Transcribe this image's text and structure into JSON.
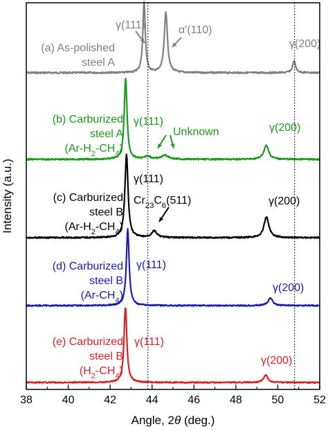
{
  "chart_data": {
    "type": "line",
    "xlabel_prefix": "Angle, 2",
    "xlabel_theta": "θ",
    "xlabel_suffix": " (deg.)",
    "ylabel": "Intensity (a.u.)",
    "xlim": [
      38,
      52
    ],
    "xticks": [
      38,
      40,
      42,
      44,
      46,
      48,
      50,
      52
    ],
    "xtick_labels": [
      "38",
      "40",
      "42",
      "44",
      "46",
      "48",
      "50",
      "52"
    ],
    "reference_lines": [
      43.8,
      50.8
    ],
    "series": [
      {
        "id": "a",
        "color": "#808080",
        "label_lines": [
          "(a) As-polished",
          "steel A"
        ],
        "baseline": 0,
        "peaks": [
          {
            "center": 43.62,
            "height": 100,
            "width": 0.07
          },
          {
            "center": 44.66,
            "height": 86,
            "width": 0.09
          },
          {
            "center": 50.78,
            "height": 16,
            "width": 0.09
          }
        ],
        "peak_labels": [
          {
            "text": "γ(111)",
            "at": 43.62
          },
          {
            "text": "α'(110)",
            "at": 44.66
          },
          {
            "text": "γ(200)",
            "at": 50.78
          }
        ]
      },
      {
        "id": "b",
        "color": "#1a9a1a",
        "label_lines": [
          "(b) Carburized",
          "steel A",
          "(Ar-H2-CH4)"
        ],
        "baseline": 0,
        "peaks": [
          {
            "center": 42.74,
            "height": 100,
            "width": 0.08
          },
          {
            "center": 43.8,
            "height": 4,
            "width": 0.15
          },
          {
            "center": 44.62,
            "height": 5,
            "width": 0.2
          },
          {
            "center": 49.45,
            "height": 17,
            "width": 0.14
          }
        ],
        "peak_labels": [
          {
            "text": "γ(111)",
            "at": 42.74
          },
          {
            "text": "Unknown",
            "at": 44.25
          },
          {
            "text": "γ(200)",
            "at": 49.45
          }
        ]
      },
      {
        "id": "c",
        "color": "#000000",
        "label_lines": [
          "(c) Carburized",
          "steel B",
          "(Ar-H2-CH4)"
        ],
        "baseline": 0,
        "peaks": [
          {
            "center": 42.78,
            "height": 100,
            "width": 0.09
          },
          {
            "center": 44.1,
            "height": 8,
            "width": 0.15
          },
          {
            "center": 49.46,
            "height": 25,
            "width": 0.14
          }
        ],
        "peak_labels": [
          {
            "text": "γ(111)",
            "at": 42.78
          },
          {
            "text": "Cr23C6(511)",
            "at": 44.1
          },
          {
            "text": "γ(200)",
            "at": 49.46
          }
        ]
      },
      {
        "id": "d",
        "color": "#1a1ab4",
        "label_lines": [
          "(d) Carburized",
          "steel B",
          "(Ar-CH4)"
        ],
        "baseline": 0,
        "peaks": [
          {
            "center": 42.84,
            "height": 100,
            "width": 0.08
          },
          {
            "center": 49.65,
            "height": 10,
            "width": 0.13
          }
        ],
        "peak_labels": [
          {
            "text": "γ(111)",
            "at": 42.84
          },
          {
            "text": "γ(200)",
            "at": 49.65
          }
        ]
      },
      {
        "id": "e",
        "color": "#e02020",
        "label_lines": [
          "(e) Carburized",
          "steel B",
          "(H2-CH4)"
        ],
        "baseline": 0,
        "peaks": [
          {
            "center": 42.73,
            "height": 100,
            "width": 0.08
          },
          {
            "center": 49.42,
            "height": 10,
            "width": 0.12
          }
        ],
        "peak_labels": [
          {
            "text": "γ(111)",
            "at": 42.73
          },
          {
            "text": "γ(200)",
            "at": 49.42
          }
        ]
      }
    ]
  }
}
